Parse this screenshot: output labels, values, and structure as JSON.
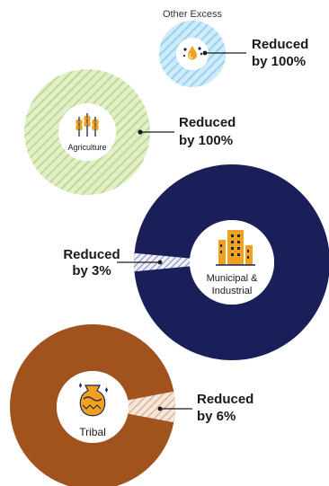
{
  "chart_data": {
    "type": "pie",
    "charts": [
      {
        "name": "Other Excess",
        "reduction_percent": 100,
        "label_line1": "Reduced",
        "label_line2": "by 100%",
        "color": "#a9dcf3"
      },
      {
        "name": "Agriculture",
        "reduction_percent": 100,
        "label_line1": "Reduced",
        "label_line2": "by 100%",
        "color": "#c4dd95"
      },
      {
        "name": "Municipal & Industrial",
        "name_line1": "Municipal &",
        "name_line2": "Industrial",
        "reduction_percent": 3,
        "label_line1": "Reduced",
        "label_line2": "by 3%",
        "color": "#1a1f5a"
      },
      {
        "name": "Tribal",
        "reduction_percent": 6,
        "label_line1": "Reduced",
        "label_line2": "by 6%",
        "color": "#a1531e"
      }
    ]
  }
}
